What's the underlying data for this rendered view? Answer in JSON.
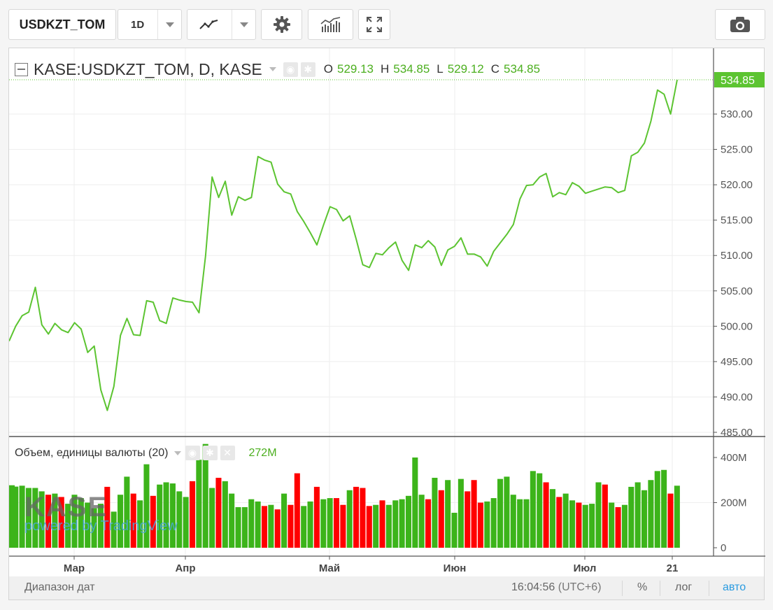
{
  "toolbar": {
    "symbol": "USDKZT_TOM",
    "interval": "1D"
  },
  "legend": {
    "title": "KASE:USDKZT_TOM, D, KASE",
    "o_label": "O",
    "o_value": "529.13",
    "h_label": "H",
    "h_value": "534.85",
    "l_label": "L",
    "l_value": "529.12",
    "c_label": "C",
    "c_value": "534.85"
  },
  "volume_legend": {
    "title": "Объем, единицы валюты (20)",
    "value": "272M"
  },
  "watermark": {
    "logo": "KASE",
    "sub": "powered by TradingView"
  },
  "price_axis": {
    "ticks": [
      "530.00",
      "525.00",
      "520.00",
      "515.00",
      "510.00",
      "505.00",
      "500.00",
      "495.00",
      "490.00",
      "485.00"
    ],
    "last_price": "534.85"
  },
  "volume_axis": {
    "ticks": [
      "400M",
      "200M",
      "0"
    ]
  },
  "time_axis": {
    "ticks": [
      "Мар",
      "Апр",
      "Май",
      "Июн",
      "Июл",
      "21"
    ]
  },
  "bottom_bar": {
    "range_label": "Диапазон дат",
    "time": "16:04:56",
    "tz": "(UTC+6)",
    "percent": "%",
    "log": "лог",
    "auto": "авто"
  },
  "colors": {
    "line": "#5cc431",
    "up": "#3cb41a",
    "down": "#ff0000",
    "accent_blue": "#2a9be0"
  },
  "chart_data": {
    "type": "line",
    "title": "KASE:USDKZT_TOM, D, KASE",
    "ylim": [
      485,
      536
    ],
    "y_ticks": [
      485,
      490,
      495,
      500,
      505,
      510,
      515,
      520,
      525,
      530
    ],
    "x_ticks": [
      "Мар",
      "Апр",
      "Май",
      "Июн",
      "Июл",
      "21"
    ],
    "series": [
      {
        "values": [
          497.9,
          500,
          501.5,
          502,
          505.5,
          500.2,
          498.9,
          500.4,
          499.5,
          499.1,
          500.5,
          499.6,
          496.3,
          497.2,
          491,
          488.1,
          491.5,
          498.7,
          501.1,
          498.8,
          498.7,
          503.6,
          503.4,
          500.8,
          500.4,
          504,
          503.7,
          503.5,
          503.4,
          501.9,
          510,
          521.1,
          518.2,
          520.5,
          515.7,
          518.3,
          517.8,
          518.2,
          524,
          523.5,
          523.2,
          520.1,
          519,
          518.7,
          516.2,
          514.8,
          513.2,
          511.5,
          514.3,
          516.9,
          516.5,
          514.9,
          515.6,
          512.3,
          508.7,
          508.3,
          510.3,
          510.1,
          511.1,
          511.9,
          509.3,
          507.9,
          511.5,
          511.1,
          512.1,
          511.2,
          508.6,
          510.8,
          511.3,
          512.5,
          510.2,
          510.2,
          509.8,
          508.5,
          510.6,
          511.8,
          513,
          514.4,
          518,
          519.9,
          520,
          521.1,
          521.6,
          518.3,
          518.9,
          518.6,
          520.3,
          519.8,
          518.8,
          519.1,
          519.4,
          519.7,
          519.6,
          518.9,
          519.2,
          524.1,
          524.6,
          525.9,
          529,
          533.4,
          532.8,
          530,
          534.85
        ]
      }
    ],
    "volume": {
      "unit": "M",
      "ylim": [
        0,
        420
      ],
      "values": [
        277,
        271,
        275,
        265,
        265,
        250,
        235,
        240,
        225,
        195,
        235,
        220,
        200,
        175,
        195,
        270,
        160,
        235,
        315,
        240,
        210,
        370,
        230,
        280,
        290,
        285,
        250,
        225,
        295,
        390,
        460,
        265,
        310,
        295,
        240,
        180,
        180,
        215,
        205,
        185,
        190,
        170,
        240,
        190,
        330,
        185,
        205,
        270,
        215,
        220,
        220,
        190,
        255,
        270,
        265,
        185,
        190,
        210,
        190,
        210,
        215,
        230,
        400,
        235,
        215,
        310,
        255,
        300,
        155,
        305,
        250,
        300,
        200,
        205,
        220,
        305,
        315,
        235,
        215,
        215,
        340,
        330,
        290,
        260,
        225,
        240,
        210,
        200,
        190,
        195,
        290,
        280,
        200,
        180,
        190,
        270,
        290,
        255,
        300,
        340,
        345,
        240,
        275
      ],
      "up": [
        true,
        true,
        true,
        true,
        true,
        true,
        false,
        true,
        false,
        true,
        true,
        true,
        true,
        true,
        true,
        false,
        true,
        true,
        true,
        false,
        true,
        true,
        false,
        true,
        true,
        true,
        true,
        true,
        false,
        true,
        true,
        true,
        false,
        true,
        true,
        true,
        true,
        true,
        true,
        false,
        true,
        false,
        true,
        false,
        false,
        true,
        true,
        false,
        true,
        true,
        false,
        false,
        true,
        false,
        false,
        false,
        true,
        false,
        true,
        true,
        true,
        true,
        true,
        true,
        false,
        true,
        false,
        true,
        true,
        true,
        false,
        false,
        false,
        true,
        true,
        true,
        true,
        true,
        true,
        true,
        true,
        true,
        false,
        true,
        false,
        true,
        true,
        false,
        true,
        true,
        true,
        false,
        true,
        false,
        true,
        true,
        true,
        true,
        true,
        true,
        true,
        false,
        true
      ]
    }
  }
}
